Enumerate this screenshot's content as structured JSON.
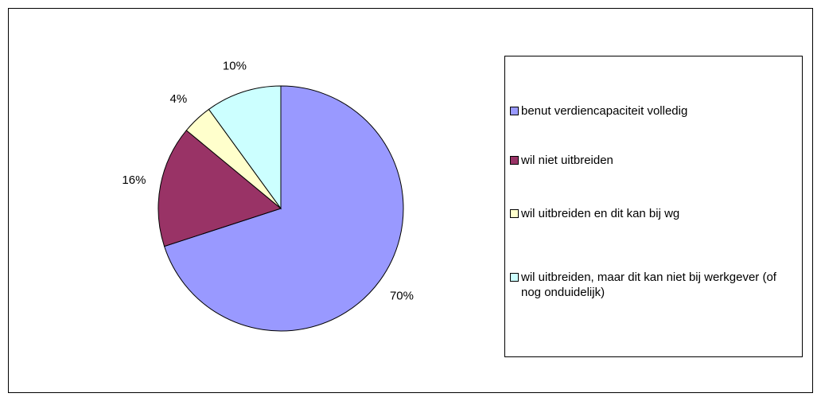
{
  "chart_data": {
    "type": "pie",
    "categories": [
      "benut verdiencapaciteit volledig",
      "wil niet uitbreiden",
      "wil uitbreiden en dit kan bij wg",
      "wil uitbreiden, maar dit kan niet bij werkgever (of nog onduidelijk)"
    ],
    "values": [
      70,
      16,
      4,
      10
    ],
    "value_labels": [
      "70%",
      "16%",
      "4%",
      "10%"
    ],
    "colors": [
      "#9999ff",
      "#993366",
      "#ffffcc",
      "#ccffff"
    ],
    "legend": "right"
  }
}
